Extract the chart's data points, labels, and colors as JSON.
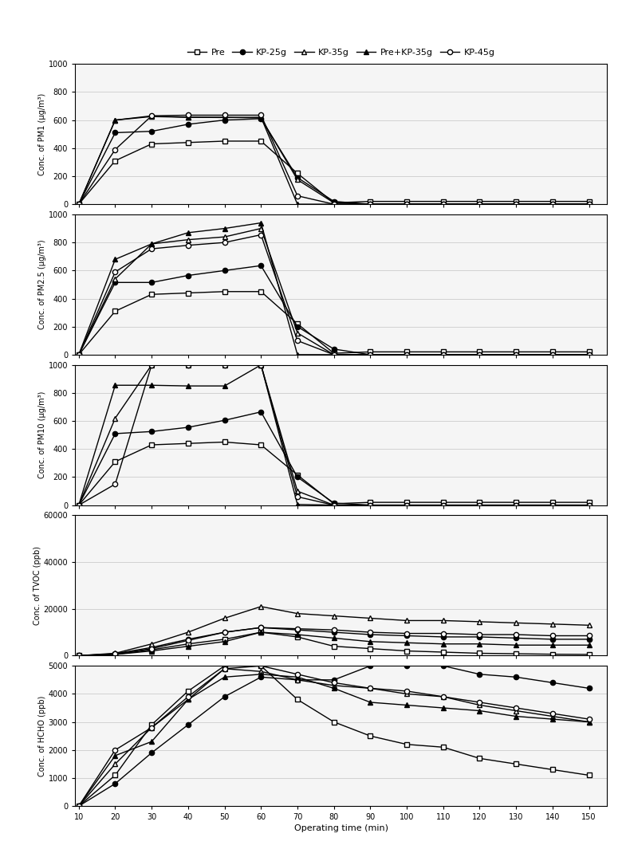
{
  "x": [
    10,
    20,
    30,
    40,
    50,
    60,
    70,
    80,
    90,
    100,
    110,
    120,
    130,
    140,
    150
  ],
  "legend_labels": [
    "Pre",
    "KP-25g",
    "KP-35g",
    "Pre+KP-35g",
    "KP-45g"
  ],
  "pm1": {
    "Pre": [
      0,
      310,
      430,
      440,
      450,
      450,
      220,
      10,
      20,
      20,
      20,
      20,
      20,
      20,
      20
    ],
    "KP-25g": [
      0,
      510,
      520,
      570,
      600,
      610,
      190,
      20,
      0,
      0,
      0,
      0,
      0,
      0,
      0
    ],
    "KP-35g": [
      0,
      600,
      630,
      620,
      620,
      615,
      175,
      10,
      0,
      0,
      0,
      0,
      0,
      0,
      0
    ],
    "Pre+KP-35g": [
      0,
      600,
      625,
      620,
      618,
      620,
      0,
      0,
      0,
      0,
      0,
      0,
      0,
      0,
      0
    ],
    "KP-45g": [
      0,
      390,
      630,
      635,
      635,
      635,
      60,
      0,
      0,
      0,
      0,
      0,
      0,
      0,
      0
    ]
  },
  "pm25": {
    "Pre": [
      0,
      310,
      430,
      440,
      450,
      450,
      220,
      10,
      20,
      20,
      20,
      20,
      20,
      20,
      20
    ],
    "KP-25g": [
      0,
      515,
      515,
      565,
      600,
      635,
      200,
      40,
      0,
      0,
      0,
      0,
      0,
      0,
      0
    ],
    "KP-35g": [
      0,
      540,
      790,
      820,
      840,
      900,
      155,
      0,
      0,
      0,
      0,
      0,
      0,
      0,
      0
    ],
    "Pre+KP-35g": [
      0,
      680,
      790,
      870,
      900,
      940,
      0,
      0,
      0,
      0,
      0,
      0,
      0,
      0,
      0
    ],
    "KP-45g": [
      0,
      590,
      755,
      780,
      800,
      855,
      100,
      0,
      0,
      0,
      0,
      0,
      0,
      0,
      0
    ]
  },
  "pm10": {
    "Pre": [
      0,
      310,
      430,
      440,
      450,
      430,
      215,
      10,
      20,
      20,
      20,
      20,
      20,
      20,
      20
    ],
    "KP-25g": [
      0,
      510,
      525,
      555,
      605,
      665,
      200,
      15,
      0,
      0,
      0,
      0,
      0,
      0,
      0
    ],
    "KP-35g": [
      0,
      620,
      1000,
      1000,
      1000,
      1000,
      100,
      0,
      0,
      0,
      0,
      0,
      0,
      0,
      0
    ],
    "Pre+KP-35g": [
      0,
      855,
      855,
      850,
      850,
      1000,
      5,
      0,
      0,
      0,
      0,
      0,
      0,
      0,
      0
    ],
    "KP-45g": [
      0,
      150,
      1000,
      1000,
      1000,
      1000,
      60,
      0,
      0,
      0,
      0,
      0,
      0,
      0,
      0
    ]
  },
  "tvoc": {
    "Pre": [
      0,
      500,
      2500,
      5000,
      7000,
      10000,
      8000,
      4000,
      3000,
      2000,
      1500,
      1000,
      800,
      600,
      500
    ],
    "KP-25g": [
      0,
      800,
      3500,
      7000,
      10000,
      12000,
      11000,
      10000,
      9000,
      8500,
      8000,
      8000,
      7500,
      7000,
      7000
    ],
    "KP-35g": [
      0,
      1000,
      5000,
      10000,
      16000,
      21000,
      18000,
      17000,
      16000,
      15000,
      15000,
      14500,
      14000,
      13500,
      13000
    ],
    "Pre+KP-35g": [
      0,
      500,
      2000,
      4000,
      6000,
      10000,
      9000,
      7500,
      6000,
      5500,
      5000,
      5000,
      4500,
      4500,
      4500
    ],
    "KP-45g": [
      0,
      700,
      3000,
      6500,
      10000,
      12000,
      11500,
      11000,
      10000,
      9500,
      9500,
      9000,
      9000,
      8500,
      8500
    ]
  },
  "hcho": {
    "Pre": [
      0,
      1100,
      2900,
      4100,
      5000,
      5000,
      3800,
      3000,
      2500,
      2200,
      2100,
      1700,
      1500,
      1300,
      1100
    ],
    "KP-25g": [
      0,
      800,
      1900,
      2900,
      3900,
      4600,
      4500,
      4500,
      5000,
      5000,
      5000,
      4700,
      4600,
      4400,
      4200
    ],
    "KP-35g": [
      0,
      1500,
      2800,
      3800,
      4900,
      4800,
      4500,
      4300,
      4200,
      4000,
      3900,
      3600,
      3400,
      3200,
      3000
    ],
    "Pre+KP-35g": [
      0,
      1800,
      2300,
      3800,
      4600,
      4700,
      4600,
      4200,
      3700,
      3600,
      3500,
      3400,
      3200,
      3100,
      3000
    ],
    "KP-45g": [
      0,
      2000,
      2800,
      3900,
      4900,
      5000,
      4700,
      4400,
      4200,
      4100,
      3900,
      3700,
      3500,
      3300,
      3100
    ]
  },
  "ylims": {
    "pm1": [
      0,
      1000
    ],
    "pm25": [
      0,
      1000
    ],
    "pm10": [
      0,
      1000
    ],
    "tvoc": [
      0,
      60000
    ],
    "hcho": [
      0,
      5000
    ]
  },
  "yticks": {
    "pm1": [
      0,
      200,
      400,
      600,
      800,
      1000
    ],
    "pm25": [
      0,
      200,
      400,
      600,
      800,
      1000
    ],
    "pm10": [
      0,
      200,
      400,
      600,
      800,
      1000
    ],
    "tvoc": [
      0,
      20000,
      40000,
      60000
    ],
    "hcho": [
      0,
      1000,
      2000,
      3000,
      4000,
      5000
    ]
  },
  "ylabels": [
    "Conc. of PM1 (μg/m³)",
    "Conc. of PM2.5 (μg/m³)",
    "Conc. of PM10 (μg/m³)",
    "Conc. of TVOC (ppb)",
    "Conc. of HCHO (ppb)"
  ],
  "xlabel": "Operating time (min)",
  "xticks": [
    10,
    20,
    30,
    40,
    50,
    60,
    70,
    80,
    90,
    100,
    110,
    120,
    130,
    140,
    150
  ],
  "line_styles": {
    "Pre": {
      "color": "#000000",
      "marker": "s",
      "fillstyle": "none",
      "linestyle": "-"
    },
    "KP-25g": {
      "color": "#000000",
      "marker": "o",
      "fillstyle": "full",
      "linestyle": "-"
    },
    "KP-35g": {
      "color": "#000000",
      "marker": "^",
      "fillstyle": "none",
      "linestyle": "-"
    },
    "Pre+KP-35g": {
      "color": "#000000",
      "marker": "^",
      "fillstyle": "full",
      "linestyle": "-"
    },
    "KP-45g": {
      "color": "#000000",
      "marker": "o",
      "fillstyle": "none",
      "linestyle": "-"
    }
  },
  "background_color": "#f5f5f5",
  "grid_color": "#cccccc"
}
